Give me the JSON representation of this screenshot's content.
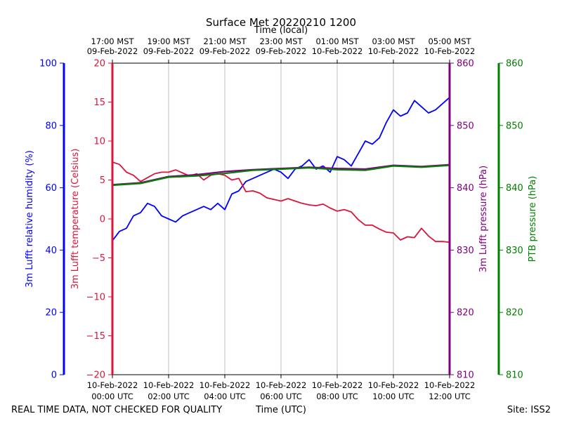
{
  "chart_data": {
    "type": "line",
    "title": "Surface Met 20220210 1200",
    "top_xlabel": "Time (local)",
    "xlabel": "Time (UTC)",
    "footer_left": "REAL TIME DATA, NOT CHECKED FOR QUALITY",
    "footer_right": "Site: ISS2",
    "x_utc_ticks": [
      {
        "hour": 0,
        "line1": "10-Feb-2022",
        "line2": "00:00 UTC"
      },
      {
        "hour": 2,
        "line1": "10-Feb-2022",
        "line2": "02:00 UTC"
      },
      {
        "hour": 4,
        "line1": "10-Feb-2022",
        "line2": "04:00 UTC"
      },
      {
        "hour": 6,
        "line1": "10-Feb-2022",
        "line2": "06:00 UTC"
      },
      {
        "hour": 8,
        "line1": "10-Feb-2022",
        "line2": "08:00 UTC"
      },
      {
        "hour": 10,
        "line1": "10-Feb-2022",
        "line2": "10:00 UTC"
      },
      {
        "hour": 12,
        "line1": "10-Feb-2022",
        "line2": "12:00 UTC"
      }
    ],
    "x_local_ticks": [
      {
        "hour": 0,
        "line1": "17:00 MST",
        "line2": "09-Feb-2022"
      },
      {
        "hour": 2,
        "line1": "19:00 MST",
        "line2": "09-Feb-2022"
      },
      {
        "hour": 4,
        "line1": "21:00 MST",
        "line2": "09-Feb-2022"
      },
      {
        "hour": 6,
        "line1": "23:00 MST",
        "line2": "09-Feb-2022"
      },
      {
        "hour": 8,
        "line1": "01:00 MST",
        "line2": "10-Feb-2022"
      },
      {
        "hour": 10,
        "line1": "03:00 MST",
        "line2": "10-Feb-2022"
      },
      {
        "hour": 12,
        "line1": "05:00 MST",
        "line2": "10-Feb-2022"
      }
    ],
    "xlim": [
      0,
      12
    ],
    "grid_x": true,
    "axes": {
      "rh": {
        "label": "3m Lufft relative humidity (%)",
        "min": 0,
        "max": 100,
        "ticks": [
          "0",
          "20",
          "40",
          "60",
          "80",
          "100"
        ],
        "color": "#0000ff"
      },
      "temp": {
        "label": "3m Lufft temperature (Celsius)",
        "min": -20,
        "max": 20,
        "ticks": [
          "−20",
          "−15",
          "−10",
          "−5",
          "0",
          "5",
          "10",
          "15",
          "20"
        ],
        "color": "#dc143c"
      },
      "lp": {
        "label": "3m Lufft pressure (hPa)",
        "min": 810,
        "max": 860,
        "ticks": [
          "810",
          "820",
          "830",
          "840",
          "850",
          "860"
        ],
        "color": "#800080"
      },
      "ptb": {
        "label": "PTB pressure (hPa)",
        "min": 810,
        "max": 860,
        "ticks": [
          "810",
          "820",
          "830",
          "840",
          "850",
          "860"
        ],
        "color": "#008000"
      }
    },
    "series": [
      {
        "axis": "rh",
        "color": "#0000ff",
        "x": [
          0,
          0.25,
          0.5,
          0.75,
          1,
          1.25,
          1.5,
          1.75,
          2,
          2.25,
          2.5,
          2.75,
          3,
          3.25,
          3.5,
          3.75,
          4,
          4.25,
          4.5,
          4.75,
          5,
          5.25,
          5.5,
          5.75,
          6,
          6.25,
          6.5,
          6.75,
          7,
          7.25,
          7.5,
          7.75,
          8,
          8.25,
          8.5,
          8.75,
          9,
          9.25,
          9.5,
          9.75,
          10,
          10.25,
          10.5,
          10.75,
          11,
          11.25,
          11.5,
          11.75,
          12
        ],
        "values": [
          43,
          46,
          47,
          51,
          52,
          55,
          54,
          51,
          50,
          49,
          51,
          52,
          53,
          54,
          53,
          55,
          53,
          58,
          59,
          62,
          63,
          64,
          65,
          66,
          65,
          63,
          66,
          67,
          69,
          66,
          67,
          65,
          70,
          69,
          67,
          71,
          75,
          74,
          76,
          81,
          85,
          83,
          84,
          88,
          86,
          84,
          85,
          87,
          89
        ]
      },
      {
        "axis": "temp",
        "color": "#dc143c",
        "x": [
          0,
          0.25,
          0.5,
          0.75,
          1,
          1.25,
          1.5,
          1.75,
          2,
          2.25,
          2.5,
          2.75,
          3,
          3.25,
          3.5,
          3.75,
          4,
          4.25,
          4.5,
          4.75,
          5,
          5.25,
          5.5,
          5.75,
          6,
          6.25,
          6.5,
          6.75,
          7,
          7.25,
          7.5,
          7.75,
          8,
          8.25,
          8.5,
          8.75,
          9,
          9.25,
          9.5,
          9.75,
          10,
          10.25,
          10.5,
          10.75,
          11,
          11.25,
          11.5,
          11.75,
          12
        ],
        "values": [
          7.3,
          7.0,
          6.0,
          5.6,
          4.8,
          5.3,
          5.8,
          6.0,
          6.0,
          6.3,
          5.9,
          5.5,
          5.8,
          5.0,
          5.6,
          5.8,
          5.6,
          5.0,
          5.2,
          3.5,
          3.6,
          3.3,
          2.7,
          2.5,
          2.3,
          2.6,
          2.3,
          2.0,
          1.8,
          1.7,
          1.9,
          1.4,
          1.0,
          1.2,
          0.9,
          -0.1,
          -0.8,
          -0.8,
          -1.3,
          -1.7,
          -1.8,
          -2.7,
          -2.3,
          -2.4,
          -1.2,
          -2.2,
          -2.9,
          -2.9,
          -3.0
        ]
      },
      {
        "axis": "lp",
        "color": "#800080",
        "x": [
          0,
          1,
          2,
          3,
          4,
          5,
          6,
          7,
          8,
          9,
          10,
          11,
          12
        ],
        "values": [
          840.5,
          840.8,
          841.8,
          842.1,
          842.6,
          842.9,
          843.1,
          843.3,
          843.1,
          843.0,
          843.6,
          843.4,
          843.7
        ]
      },
      {
        "axis": "ptb",
        "color": "#008000",
        "x": [
          0,
          1,
          2,
          3,
          4,
          5,
          6,
          7,
          8,
          9,
          10,
          11,
          12
        ],
        "values": [
          840.4,
          840.7,
          841.7,
          841.9,
          842.3,
          842.8,
          843.0,
          843.2,
          842.9,
          842.8,
          843.5,
          843.3,
          843.6
        ]
      }
    ]
  }
}
